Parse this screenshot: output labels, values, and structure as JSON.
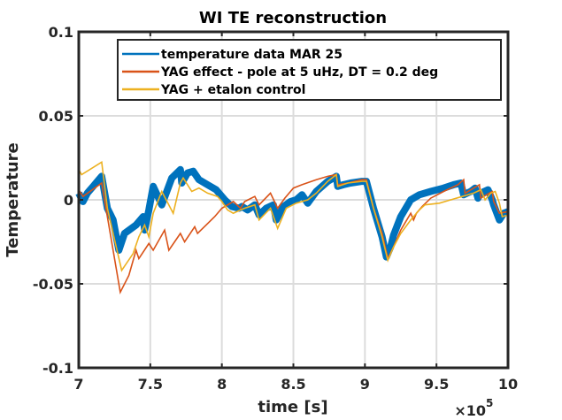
{
  "chart_data": {
    "type": "line",
    "title": "WI TE reconstruction",
    "xlabel": "time [s]",
    "ylabel": "Temperature",
    "x_exponent_label": "×10",
    "x_exponent_power": "5",
    "xlim": [
      700000,
      1000000
    ],
    "ylim": [
      -0.1,
      0.1
    ],
    "xticks": [
      700000,
      750000,
      800000,
      850000,
      900000,
      950000,
      1000000
    ],
    "xtick_labels": [
      "7",
      "7.5",
      "8",
      "8.5",
      "9",
      "9.5",
      "10"
    ],
    "yticks": [
      0.1,
      0.05,
      0,
      -0.05,
      -0.1
    ],
    "ytick_labels": [
      "0.1",
      "0.05",
      "0",
      "-0.05",
      "-0.1"
    ],
    "grid": true,
    "legend_position": "top-right",
    "series": [
      {
        "name": "temperature data MAR 25",
        "color": "#0072BD",
        "band": true,
        "x": [
          700000,
          703000,
          706000,
          710000,
          714000,
          716000,
          720000,
          724000,
          728000,
          732000,
          740000,
          745000,
          746000,
          749000,
          752000,
          758000,
          765000,
          771000,
          772000,
          776000,
          780000,
          784000,
          790000,
          796000,
          799000,
          802000,
          807000,
          812000,
          814000,
          818000,
          823000,
          826000,
          831000,
          836000,
          838000,
          843000,
          848000,
          852000,
          856000,
          860000,
          866000,
          874000,
          880000,
          881000,
          885000,
          890000,
          898000,
          901000,
          906000,
          912000,
          915000,
          918000,
          920000,
          925000,
          932000,
          938000,
          946000,
          955000,
          962000,
          967000,
          969000,
          974000,
          977000,
          979000,
          981000,
          986000,
          989000,
          990000,
          994000,
          997000,
          1000000
        ],
        "values": [
          0.004,
          -0.001,
          0.004,
          0.008,
          0.012,
          0.014,
          -0.005,
          -0.012,
          -0.03,
          -0.02,
          -0.015,
          -0.01,
          -0.018,
          -0.006,
          0.008,
          -0.003,
          0.013,
          0.018,
          0.01,
          0.016,
          0.017,
          0.012,
          0.009,
          0.006,
          0.003,
          0.0,
          -0.004,
          -0.005,
          -0.004,
          -0.006,
          -0.003,
          -0.009,
          -0.005,
          -0.003,
          -0.012,
          -0.004,
          -0.001,
          0.0,
          0.003,
          -0.002,
          0.005,
          0.011,
          0.014,
          0.008,
          0.009,
          0.01,
          0.011,
          0.011,
          -0.005,
          -0.022,
          -0.034,
          -0.028,
          -0.021,
          -0.01,
          0.0,
          0.003,
          0.005,
          0.007,
          0.009,
          0.01,
          0.003,
          0.005,
          0.007,
          0.001,
          0.004,
          0.006,
          0.0,
          -0.003,
          -0.012,
          -0.008,
          -0.007
        ]
      },
      {
        "name": "YAG effect - pole at 5 uHz, DT = 0.2 deg",
        "color": "#D95319",
        "band": false,
        "x": [
          700000,
          703000,
          716000,
          720000,
          724000,
          729000,
          735000,
          740000,
          742000,
          749000,
          752000,
          760000,
          763000,
          771000,
          774000,
          781000,
          783000,
          795000,
          800000,
          808000,
          813000,
          816000,
          823000,
          826000,
          834000,
          839000,
          844000,
          850000,
          856000,
          866000,
          874000,
          880000,
          881000,
          888000,
          898000,
          901000,
          906000,
          912000,
          916000,
          920000,
          925000,
          932000,
          934000,
          936000,
          940000,
          946000,
          955000,
          965000,
          969000,
          970000,
          980000,
          981000,
          989000,
          990000,
          994000,
          1000000
        ],
        "values": [
          0.006,
          0.002,
          0.01,
          -0.01,
          -0.03,
          -0.055,
          -0.045,
          -0.03,
          -0.035,
          -0.026,
          -0.03,
          -0.018,
          -0.03,
          -0.02,
          -0.025,
          -0.016,
          -0.02,
          -0.01,
          -0.005,
          -0.001,
          -0.005,
          -0.001,
          0.002,
          -0.003,
          0.004,
          -0.005,
          0.001,
          0.007,
          0.009,
          0.012,
          0.014,
          0.015,
          0.009,
          0.01,
          0.012,
          0.012,
          -0.005,
          -0.02,
          -0.035,
          -0.028,
          -0.018,
          -0.008,
          -0.012,
          -0.008,
          -0.004,
          0.001,
          0.005,
          0.009,
          0.012,
          0.004,
          0.009,
          0.001,
          0.005,
          -0.001,
          -0.008,
          -0.007
        ]
      },
      {
        "name": "YAG + etalon control",
        "color": "#EDB120",
        "band": false,
        "x": [
          700000,
          702000,
          716000,
          720000,
          724000,
          730000,
          738000,
          742000,
          746000,
          749000,
          752000,
          758000,
          766000,
          771000,
          773000,
          779000,
          784000,
          790000,
          797000,
          800000,
          804000,
          808000,
          813000,
          816000,
          823000,
          826000,
          834000,
          839000,
          845000,
          852000,
          860000,
          866000,
          874000,
          880000,
          881000,
          888000,
          898000,
          901000,
          906000,
          912000,
          916000,
          920000,
          925000,
          932000,
          938000,
          942000,
          952000,
          960000,
          968000,
          976000,
          981000,
          984000,
          988000,
          991000,
          994000,
          996000,
          1000000
        ],
        "values": [
          0.018,
          0.015,
          0.0225,
          -0.005,
          -0.02,
          -0.042,
          -0.032,
          -0.022,
          -0.015,
          -0.022,
          -0.008,
          0.005,
          -0.008,
          0.01,
          0.013,
          0.005,
          0.007,
          0.004,
          0.002,
          -0.001,
          -0.006,
          -0.008,
          -0.006,
          -0.005,
          -0.003,
          -0.012,
          -0.005,
          -0.017,
          -0.005,
          -0.002,
          0.0,
          0.004,
          0.011,
          0.015,
          0.008,
          0.01,
          0.011,
          0.011,
          -0.005,
          -0.022,
          -0.036,
          -0.028,
          -0.02,
          -0.012,
          -0.006,
          -0.003,
          -0.002,
          0.0,
          0.002,
          0.004,
          0.006,
          0.0,
          0.004,
          0.005,
          -0.002,
          -0.01,
          -0.009
        ]
      }
    ]
  }
}
